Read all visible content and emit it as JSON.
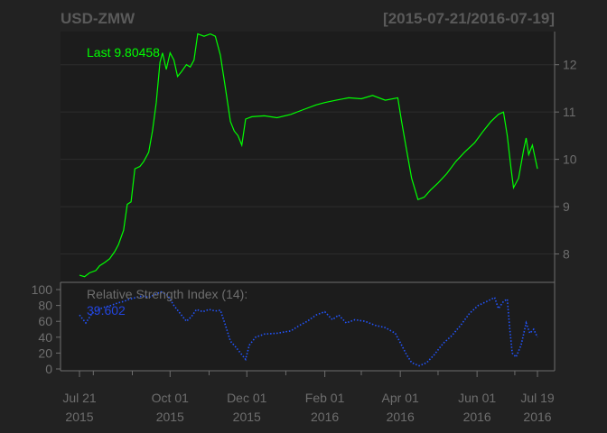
{
  "chart_data": {
    "type": "line",
    "title": "USD-ZMW",
    "date_range": "[2015-07-21/2016-07-19]",
    "x_range": [
      "2015-07-21",
      "2016-07-19"
    ],
    "last_label": "Last 9.80458",
    "price": {
      "ylim": [
        7.4,
        12.7
      ],
      "ticks": [
        8,
        9,
        10,
        11,
        12
      ],
      "color": "#00ff00",
      "points": [
        [
          "2015-07-21",
          7.55
        ],
        [
          "2015-07-25",
          7.52
        ],
        [
          "2015-07-29",
          7.6
        ],
        [
          "2015-08-03",
          7.65
        ],
        [
          "2015-08-06",
          7.75
        ],
        [
          "2015-08-10",
          7.82
        ],
        [
          "2015-08-14",
          7.9
        ],
        [
          "2015-08-18",
          8.05
        ],
        [
          "2015-08-21",
          8.2
        ],
        [
          "2015-08-25",
          8.5
        ],
        [
          "2015-08-28",
          9.05
        ],
        [
          "2015-08-31",
          9.1
        ],
        [
          "2015-09-03",
          9.8
        ],
        [
          "2015-09-07",
          9.85
        ],
        [
          "2015-09-10",
          9.95
        ],
        [
          "2015-09-14",
          10.15
        ],
        [
          "2015-09-17",
          10.6
        ],
        [
          "2015-09-20",
          11.2
        ],
        [
          "2015-09-23",
          12.05
        ],
        [
          "2015-09-25",
          12.25
        ],
        [
          "2015-09-28",
          11.9
        ],
        [
          "2015-10-01",
          12.25
        ],
        [
          "2015-10-04",
          12.1
        ],
        [
          "2015-10-07",
          11.75
        ],
        [
          "2015-10-10",
          11.85
        ],
        [
          "2015-10-14",
          12.0
        ],
        [
          "2015-10-17",
          11.95
        ],
        [
          "2015-10-20",
          12.1
        ],
        [
          "2015-10-23",
          12.65
        ],
        [
          "2015-10-28",
          12.6
        ],
        [
          "2015-11-02",
          12.65
        ],
        [
          "2015-11-06",
          12.6
        ],
        [
          "2015-11-10",
          12.2
        ],
        [
          "2015-11-14",
          11.5
        ],
        [
          "2015-11-18",
          10.8
        ],
        [
          "2015-11-21",
          10.6
        ],
        [
          "2015-11-24",
          10.5
        ],
        [
          "2015-11-27",
          10.3
        ],
        [
          "2015-11-30",
          10.85
        ],
        [
          "2015-12-05",
          10.9
        ],
        [
          "2015-12-15",
          10.92
        ],
        [
          "2015-12-25",
          10.88
        ],
        [
          "2016-01-05",
          10.95
        ],
        [
          "2016-01-15",
          11.05
        ],
        [
          "2016-01-25",
          11.15
        ],
        [
          "2016-02-01",
          11.2
        ],
        [
          "2016-02-10",
          11.25
        ],
        [
          "2016-02-20",
          11.3
        ],
        [
          "2016-03-01",
          11.28
        ],
        [
          "2016-03-10",
          11.35
        ],
        [
          "2016-03-20",
          11.25
        ],
        [
          "2016-03-30",
          11.3
        ],
        [
          "2016-04-02",
          10.8
        ],
        [
          "2016-04-06",
          10.2
        ],
        [
          "2016-04-10",
          9.6
        ],
        [
          "2016-04-15",
          9.15
        ],
        [
          "2016-04-20",
          9.2
        ],
        [
          "2016-04-25",
          9.35
        ],
        [
          "2016-05-01",
          9.5
        ],
        [
          "2016-05-08",
          9.7
        ],
        [
          "2016-05-15",
          9.95
        ],
        [
          "2016-05-22",
          10.15
        ],
        [
          "2016-05-30",
          10.35
        ],
        [
          "2016-06-06",
          10.6
        ],
        [
          "2016-06-12",
          10.8
        ],
        [
          "2016-06-18",
          10.95
        ],
        [
          "2016-06-22",
          11.0
        ],
        [
          "2016-06-25",
          10.5
        ],
        [
          "2016-06-28",
          9.8
        ],
        [
          "2016-06-30",
          9.4
        ],
        [
          "2016-07-04",
          9.6
        ],
        [
          "2016-07-08",
          10.2
        ],
        [
          "2016-07-10",
          10.45
        ],
        [
          "2016-07-12",
          10.1
        ],
        [
          "2016-07-15",
          10.3
        ],
        [
          "2016-07-19",
          9.8
        ]
      ]
    },
    "rsi": {
      "label": "Relative Strength Index (14):",
      "value_label": "39.602",
      "ylim": [
        0,
        100
      ],
      "ticks": [
        0,
        20,
        40,
        60,
        80,
        100
      ],
      "color": "#2255ff",
      "points": [
        [
          "2015-07-21",
          68
        ],
        [
          "2015-07-26",
          58
        ],
        [
          "2015-07-31",
          70
        ],
        [
          "2015-08-05",
          75
        ],
        [
          "2015-08-10",
          78
        ],
        [
          "2015-08-15",
          80
        ],
        [
          "2015-08-20",
          83
        ],
        [
          "2015-08-25",
          85
        ],
        [
          "2015-08-30",
          88
        ],
        [
          "2015-09-04",
          90
        ],
        [
          "2015-09-09",
          92
        ],
        [
          "2015-09-14",
          90
        ],
        [
          "2015-09-19",
          94
        ],
        [
          "2015-09-24",
          97
        ],
        [
          "2015-09-29",
          93
        ],
        [
          "2015-10-04",
          80
        ],
        [
          "2015-10-09",
          70
        ],
        [
          "2015-10-14",
          60
        ],
        [
          "2015-10-18",
          66
        ],
        [
          "2015-10-22",
          75
        ],
        [
          "2015-10-27",
          72
        ],
        [
          "2015-11-01",
          75
        ],
        [
          "2015-11-06",
          73
        ],
        [
          "2015-11-10",
          74
        ],
        [
          "2015-11-14",
          55
        ],
        [
          "2015-11-18",
          35
        ],
        [
          "2015-11-22",
          28
        ],
        [
          "2015-11-26",
          20
        ],
        [
          "2015-11-30",
          12
        ],
        [
          "2015-12-03",
          30
        ],
        [
          "2015-12-08",
          40
        ],
        [
          "2015-12-15",
          44
        ],
        [
          "2015-12-25",
          45
        ],
        [
          "2016-01-05",
          48
        ],
        [
          "2016-01-12",
          55
        ],
        [
          "2016-01-18",
          60
        ],
        [
          "2016-01-25",
          68
        ],
        [
          "2016-02-01",
          72
        ],
        [
          "2016-02-07",
          62
        ],
        [
          "2016-02-12",
          68
        ],
        [
          "2016-02-18",
          58
        ],
        [
          "2016-02-25",
          62
        ],
        [
          "2016-03-04",
          60
        ],
        [
          "2016-03-12",
          55
        ],
        [
          "2016-03-20",
          52
        ],
        [
          "2016-03-28",
          45
        ],
        [
          "2016-04-02",
          30
        ],
        [
          "2016-04-06",
          18
        ],
        [
          "2016-04-10",
          8
        ],
        [
          "2016-04-16",
          4
        ],
        [
          "2016-04-22",
          8
        ],
        [
          "2016-04-28",
          18
        ],
        [
          "2016-05-05",
          32
        ],
        [
          "2016-05-12",
          42
        ],
        [
          "2016-05-19",
          55
        ],
        [
          "2016-05-26",
          70
        ],
        [
          "2016-06-02",
          80
        ],
        [
          "2016-06-10",
          86
        ],
        [
          "2016-06-15",
          90
        ],
        [
          "2016-06-18",
          76
        ],
        [
          "2016-06-22",
          85
        ],
        [
          "2016-06-25",
          88
        ],
        [
          "2016-06-27",
          50
        ],
        [
          "2016-06-29",
          20
        ],
        [
          "2016-07-02",
          15
        ],
        [
          "2016-07-06",
          30
        ],
        [
          "2016-07-10",
          58
        ],
        [
          "2016-07-13",
          45
        ],
        [
          "2016-07-16",
          50
        ],
        [
          "2016-07-19",
          40
        ]
      ]
    },
    "x_ticks": [
      {
        "date": "2015-07-21",
        "line1": "Jul 21",
        "line2": "2015"
      },
      {
        "date": "2015-10-01",
        "line1": "Oct 01",
        "line2": "2015"
      },
      {
        "date": "2015-12-01",
        "line1": "Dec 01",
        "line2": "2015"
      },
      {
        "date": "2016-02-01",
        "line1": "Feb 01",
        "line2": "2016"
      },
      {
        "date": "2016-04-01",
        "line1": "Apr 01",
        "line2": "2016"
      },
      {
        "date": "2016-06-01",
        "line1": "Jun 01",
        "line2": "2016"
      },
      {
        "date": "2016-07-19",
        "line1": "Jul 19",
        "line2": "2016"
      }
    ],
    "minor_tick_dates": [
      "2015-08-01",
      "2015-09-01",
      "2015-11-01",
      "2016-01-01",
      "2016-03-01",
      "2016-05-01",
      "2016-07-01"
    ],
    "grid": true
  }
}
